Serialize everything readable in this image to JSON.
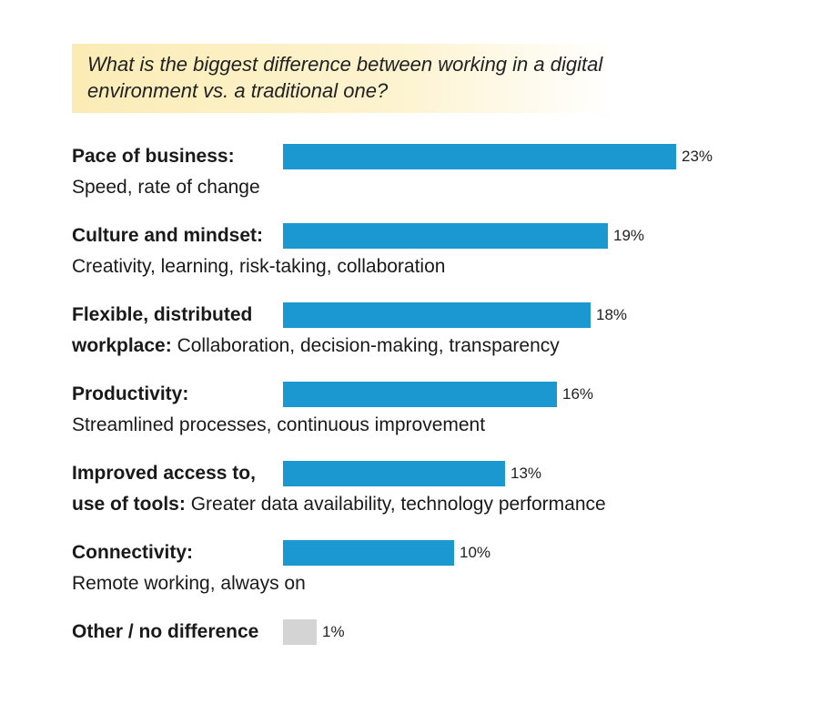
{
  "question": "What is the biggest difference between working in a digital environment vs. a traditional one?",
  "colors": {
    "bar": "#1b98d0",
    "bar_other": "#d4d4d4",
    "question_bg": "#fbecb6"
  },
  "chart_data": {
    "type": "bar",
    "orientation": "horizontal",
    "title": "What is the biggest difference between working in a digital environment vs. a traditional one?",
    "xlim": [
      0,
      23
    ],
    "unit": "%",
    "categories": [
      {
        "bold": "Pace of business:",
        "line2_bold": "",
        "desc": "Speed, rate of change",
        "value": 23,
        "label": "23%"
      },
      {
        "bold": "Culture and mindset:",
        "line2_bold": "",
        "desc": "Creativity, learning, risk-taking, collaboration",
        "value": 19,
        "label": "19%"
      },
      {
        "bold": "Flexible, distributed",
        "line2_bold": "workplace:",
        "desc": "Collaboration, decision-making, transparency",
        "value": 18,
        "label": "18%"
      },
      {
        "bold": "Productivity:",
        "line2_bold": "",
        "desc": "Streamlined processes, continuous improvement",
        "value": 16,
        "label": "16%"
      },
      {
        "bold": "Improved access to,",
        "line2_bold": "use of tools:",
        "desc": "Greater data availability, technology performance",
        "value": 13,
        "label": "13%"
      },
      {
        "bold": "Connectivity:",
        "line2_bold": "",
        "desc": "Remote working, always on",
        "value": 10,
        "label": "10%"
      },
      {
        "bold": "Other / no difference",
        "line2_bold": "",
        "desc": "",
        "value": 1,
        "label": "1%",
        "muted": true
      }
    ]
  }
}
